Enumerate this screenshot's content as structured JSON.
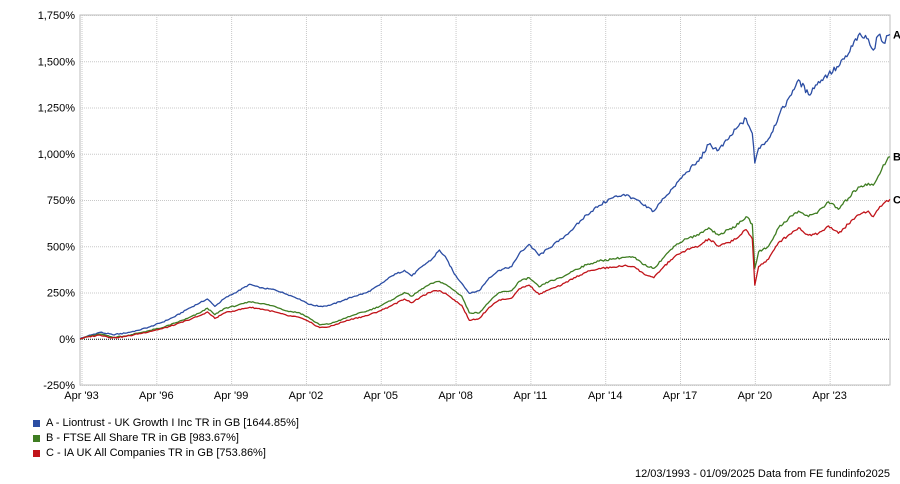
{
  "chart_data": {
    "type": "line",
    "title": "",
    "xlabel": "",
    "ylabel": "",
    "ylim": [
      -250,
      1750
    ],
    "y_ticks": [
      -250,
      0,
      250,
      500,
      750,
      1000,
      1250,
      1500,
      1750
    ],
    "y_tick_labels": [
      "-250%",
      "0%",
      "250%",
      "500%",
      "750%",
      "1,000%",
      "1,250%",
      "1,500%",
      "1,750%"
    ],
    "x_range": [
      1993.19,
      2025.67
    ],
    "x_ticks": [
      1993.25,
      1996.25,
      1999.25,
      2002.25,
      2005.25,
      2008.25,
      2011.25,
      2014.25,
      2017.25,
      2020.25,
      2023.25
    ],
    "x_tick_labels": [
      "Apr '93",
      "Apr '96",
      "Apr '99",
      "Apr '02",
      "Apr '05",
      "Apr '08",
      "Apr '11",
      "Apr '14",
      "Apr '17",
      "Apr '20",
      "Apr '23"
    ],
    "grid": true,
    "series": [
      {
        "name": "A - Liontrust - UK Growth I Inc TR in GB [1644.85%]",
        "end_label": "A",
        "color": "#2b4da3",
        "points": [
          [
            1993.19,
            0
          ],
          [
            1993.5,
            15
          ],
          [
            1994.0,
            35
          ],
          [
            1994.5,
            22
          ],
          [
            1995.0,
            30
          ],
          [
            1995.5,
            45
          ],
          [
            1996.0,
            65
          ],
          [
            1996.5,
            90
          ],
          [
            1997.0,
            120
          ],
          [
            1997.5,
            160
          ],
          [
            1998.0,
            195
          ],
          [
            1998.3,
            215
          ],
          [
            1998.6,
            175
          ],
          [
            1999.0,
            220
          ],
          [
            1999.5,
            255
          ],
          [
            2000.0,
            295
          ],
          [
            2000.4,
            275
          ],
          [
            2001.0,
            265
          ],
          [
            2001.5,
            240
          ],
          [
            2002.0,
            215
          ],
          [
            2002.4,
            185
          ],
          [
            2002.8,
            175
          ],
          [
            2003.2,
            180
          ],
          [
            2003.7,
            205
          ],
          [
            2004.2,
            230
          ],
          [
            2004.7,
            250
          ],
          [
            2005.2,
            290
          ],
          [
            2005.7,
            340
          ],
          [
            2006.2,
            370
          ],
          [
            2006.5,
            340
          ],
          [
            2006.9,
            390
          ],
          [
            2007.3,
            430
          ],
          [
            2007.6,
            480
          ],
          [
            2007.9,
            430
          ],
          [
            2008.2,
            350
          ],
          [
            2008.5,
            300
          ],
          [
            2008.8,
            245
          ],
          [
            2009.2,
            260
          ],
          [
            2009.6,
            330
          ],
          [
            2010.0,
            370
          ],
          [
            2010.5,
            390
          ],
          [
            2010.8,
            460
          ],
          [
            2011.2,
            510
          ],
          [
            2011.6,
            450
          ],
          [
            2012.0,
            490
          ],
          [
            2012.5,
            540
          ],
          [
            2013.0,
            600
          ],
          [
            2013.5,
            670
          ],
          [
            2014.0,
            720
          ],
          [
            2014.5,
            760
          ],
          [
            2015.0,
            780
          ],
          [
            2015.4,
            760
          ],
          [
            2015.8,
            720
          ],
          [
            2016.2,
            690
          ],
          [
            2016.6,
            760
          ],
          [
            2017.0,
            820
          ],
          [
            2017.5,
            900
          ],
          [
            2018.0,
            960
          ],
          [
            2018.4,
            1050
          ],
          [
            2018.8,
            1020
          ],
          [
            2019.2,
            1080
          ],
          [
            2019.6,
            1150
          ],
          [
            2019.9,
            1190
          ],
          [
            2020.15,
            1110
          ],
          [
            2020.25,
            950
          ],
          [
            2020.4,
            1030
          ],
          [
            2020.8,
            1080
          ],
          [
            2021.2,
            1200
          ],
          [
            2021.6,
            1300
          ],
          [
            2022.0,
            1400
          ],
          [
            2022.4,
            1320
          ],
          [
            2022.8,
            1390
          ],
          [
            2023.2,
            1430
          ],
          [
            2023.6,
            1470
          ],
          [
            2024.0,
            1540
          ],
          [
            2024.4,
            1640
          ],
          [
            2024.8,
            1620
          ],
          [
            2025.0,
            1560
          ],
          [
            2025.2,
            1640
          ],
          [
            2025.4,
            1600
          ],
          [
            2025.67,
            1645
          ]
        ]
      },
      {
        "name": "B - FTSE All Share TR in GB [983.67%]",
        "end_label": "B",
        "color": "#3f7d22",
        "points": [
          [
            1993.19,
            0
          ],
          [
            1993.5,
            12
          ],
          [
            1994.0,
            25
          ],
          [
            1994.5,
            8
          ],
          [
            1995.0,
            15
          ],
          [
            1995.5,
            30
          ],
          [
            1996.0,
            45
          ],
          [
            1996.5,
            60
          ],
          [
            1997.0,
            85
          ],
          [
            1997.5,
            110
          ],
          [
            1998.0,
            140
          ],
          [
            1998.3,
            165
          ],
          [
            1998.6,
            130
          ],
          [
            1999.0,
            165
          ],
          [
            1999.5,
            180
          ],
          [
            2000.0,
            200
          ],
          [
            2000.5,
            190
          ],
          [
            2001.0,
            175
          ],
          [
            2001.5,
            150
          ],
          [
            2002.0,
            140
          ],
          [
            2002.4,
            110
          ],
          [
            2002.8,
            75
          ],
          [
            2003.2,
            80
          ],
          [
            2003.7,
            105
          ],
          [
            2004.2,
            130
          ],
          [
            2004.7,
            150
          ],
          [
            2005.2,
            175
          ],
          [
            2005.7,
            210
          ],
          [
            2006.2,
            250
          ],
          [
            2006.5,
            230
          ],
          [
            2006.9,
            270
          ],
          [
            2007.3,
            300
          ],
          [
            2007.6,
            310
          ],
          [
            2007.9,
            290
          ],
          [
            2008.2,
            260
          ],
          [
            2008.5,
            230
          ],
          [
            2008.8,
            140
          ],
          [
            2009.2,
            140
          ],
          [
            2009.6,
            200
          ],
          [
            2010.0,
            250
          ],
          [
            2010.5,
            260
          ],
          [
            2010.8,
            310
          ],
          [
            2011.2,
            330
          ],
          [
            2011.6,
            280
          ],
          [
            2012.0,
            310
          ],
          [
            2012.5,
            330
          ],
          [
            2013.0,
            370
          ],
          [
            2013.5,
            400
          ],
          [
            2014.0,
            420
          ],
          [
            2014.5,
            430
          ],
          [
            2015.0,
            440
          ],
          [
            2015.4,
            440
          ],
          [
            2015.8,
            400
          ],
          [
            2016.2,
            380
          ],
          [
            2016.6,
            440
          ],
          [
            2017.0,
            500
          ],
          [
            2017.5,
            540
          ],
          [
            2018.0,
            560
          ],
          [
            2018.4,
            600
          ],
          [
            2018.8,
            560
          ],
          [
            2019.2,
            590
          ],
          [
            2019.6,
            620
          ],
          [
            2019.9,
            660
          ],
          [
            2020.15,
            620
          ],
          [
            2020.25,
            380
          ],
          [
            2020.4,
            470
          ],
          [
            2020.8,
            500
          ],
          [
            2021.2,
            600
          ],
          [
            2021.6,
            650
          ],
          [
            2022.0,
            690
          ],
          [
            2022.4,
            660
          ],
          [
            2022.8,
            690
          ],
          [
            2023.2,
            740
          ],
          [
            2023.6,
            700
          ],
          [
            2024.0,
            760
          ],
          [
            2024.4,
            820
          ],
          [
            2024.8,
            840
          ],
          [
            2025.0,
            830
          ],
          [
            2025.2,
            880
          ],
          [
            2025.4,
            940
          ],
          [
            2025.67,
            984
          ]
        ]
      },
      {
        "name": "C - IA UK All Companies TR in GB [753.86%]",
        "end_label": "C",
        "color": "#c1141a",
        "points": [
          [
            1993.19,
            0
          ],
          [
            1993.5,
            10
          ],
          [
            1994.0,
            20
          ],
          [
            1994.5,
            5
          ],
          [
            1995.0,
            12
          ],
          [
            1995.5,
            25
          ],
          [
            1996.0,
            40
          ],
          [
            1996.5,
            55
          ],
          [
            1997.0,
            75
          ],
          [
            1997.5,
            100
          ],
          [
            1998.0,
            125
          ],
          [
            1998.3,
            145
          ],
          [
            1998.6,
            110
          ],
          [
            1999.0,
            140
          ],
          [
            1999.5,
            155
          ],
          [
            2000.0,
            170
          ],
          [
            2000.5,
            160
          ],
          [
            2001.0,
            145
          ],
          [
            2001.5,
            125
          ],
          [
            2002.0,
            115
          ],
          [
            2002.4,
            90
          ],
          [
            2002.8,
            60
          ],
          [
            2003.2,
            65
          ],
          [
            2003.7,
            90
          ],
          [
            2004.2,
            110
          ],
          [
            2004.7,
            125
          ],
          [
            2005.2,
            150
          ],
          [
            2005.7,
            180
          ],
          [
            2006.2,
            215
          ],
          [
            2006.5,
            195
          ],
          [
            2006.9,
            230
          ],
          [
            2007.3,
            255
          ],
          [
            2007.6,
            260
          ],
          [
            2007.9,
            240
          ],
          [
            2008.2,
            210
          ],
          [
            2008.5,
            180
          ],
          [
            2008.8,
            100
          ],
          [
            2009.2,
            110
          ],
          [
            2009.6,
            170
          ],
          [
            2010.0,
            210
          ],
          [
            2010.5,
            220
          ],
          [
            2010.8,
            270
          ],
          [
            2011.2,
            290
          ],
          [
            2011.6,
            240
          ],
          [
            2012.0,
            265
          ],
          [
            2012.5,
            290
          ],
          [
            2013.0,
            330
          ],
          [
            2013.5,
            360
          ],
          [
            2014.0,
            380
          ],
          [
            2014.5,
            385
          ],
          [
            2015.0,
            395
          ],
          [
            2015.4,
            390
          ],
          [
            2015.8,
            350
          ],
          [
            2016.2,
            330
          ],
          [
            2016.6,
            390
          ],
          [
            2017.0,
            440
          ],
          [
            2017.5,
            480
          ],
          [
            2018.0,
            500
          ],
          [
            2018.4,
            540
          ],
          [
            2018.8,
            500
          ],
          [
            2019.2,
            520
          ],
          [
            2019.6,
            550
          ],
          [
            2019.9,
            590
          ],
          [
            2020.15,
            540
          ],
          [
            2020.25,
            290
          ],
          [
            2020.4,
            390
          ],
          [
            2020.8,
            430
          ],
          [
            2021.2,
            520
          ],
          [
            2021.6,
            560
          ],
          [
            2022.0,
            600
          ],
          [
            2022.4,
            560
          ],
          [
            2022.8,
            570
          ],
          [
            2023.2,
            610
          ],
          [
            2023.6,
            570
          ],
          [
            2024.0,
            620
          ],
          [
            2024.4,
            670
          ],
          [
            2024.8,
            690
          ],
          [
            2025.0,
            660
          ],
          [
            2025.2,
            700
          ],
          [
            2025.4,
            730
          ],
          [
            2025.67,
            754
          ]
        ]
      }
    ]
  },
  "footer": "12/03/1993 - 01/09/2025 Data from FE fundinfo2025"
}
